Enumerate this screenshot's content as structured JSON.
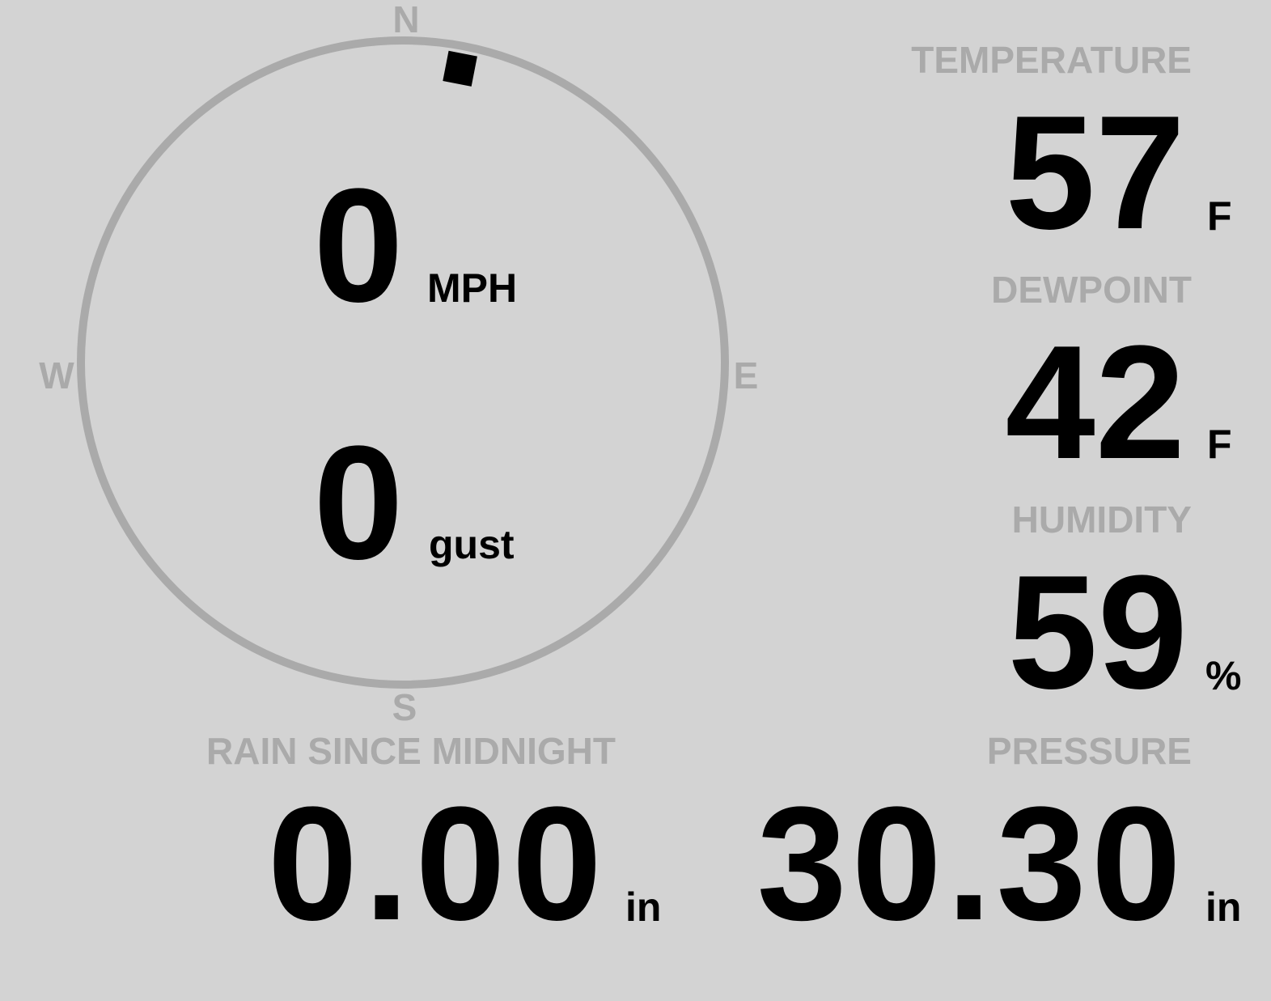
{
  "colors": {
    "background": "#d3d3d3",
    "label": "#aaaaaa",
    "value": "#000000",
    "ring": "#aaaaaa"
  },
  "wind": {
    "compass": {
      "north": "N",
      "east": "E",
      "south": "S",
      "west": "W"
    },
    "direction_degrees": 11,
    "speed": "0",
    "speed_unit": "MPH",
    "gust": "0",
    "gust_unit": "gust"
  },
  "temperature": {
    "label": "TEMPERATURE",
    "value": "57",
    "unit": "F"
  },
  "dewpoint": {
    "label": "DEWPOINT",
    "value": "42",
    "unit": "F"
  },
  "humidity": {
    "label": "HUMIDITY",
    "value": "59",
    "unit": "%"
  },
  "pressure": {
    "label": "PRESSURE",
    "value": "30.30",
    "unit": "in"
  },
  "rain": {
    "label": "RAIN SINCE MIDNIGHT",
    "value": "0.00",
    "unit": "in"
  }
}
